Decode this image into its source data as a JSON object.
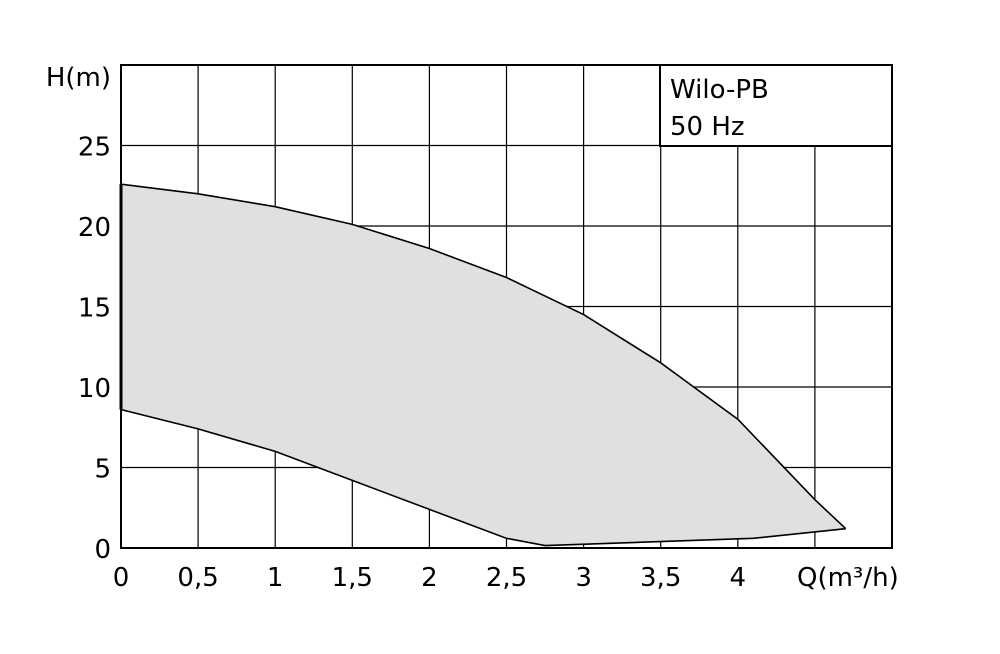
{
  "chart_data": {
    "type": "area",
    "title": "",
    "xlabel": "Q(m³/h)",
    "ylabel": "H(m)",
    "xlim": [
      0,
      5
    ],
    "ylim": [
      0,
      30
    ],
    "x_ticks": [
      "0",
      "0,5",
      "1",
      "1,5",
      "2",
      "2,5",
      "3",
      "3,5",
      "4"
    ],
    "x_tick_values": [
      0,
      0.5,
      1,
      1.5,
      2,
      2.5,
      3,
      3.5,
      4
    ],
    "y_ticks": [
      "0",
      "5",
      "10",
      "15",
      "20",
      "25"
    ],
    "y_tick_values": [
      0,
      5,
      10,
      15,
      20,
      25
    ],
    "grid": true,
    "x_grid_values": [
      0.5,
      1,
      1.5,
      2,
      2.5,
      3,
      3.5,
      4,
      4.5
    ],
    "y_grid_values": [
      5,
      10,
      15,
      20,
      25
    ],
    "legend_box": {
      "lines": [
        "Wilo-PB",
        "50 Hz"
      ],
      "placement": "top-right"
    },
    "region": {
      "fill": "#e0e0e0",
      "stroke": "#000000",
      "upper_boundary": [
        [
          0,
          22.6
        ],
        [
          0.5,
          22.0
        ],
        [
          1,
          21.2
        ],
        [
          1.5,
          20.1
        ],
        [
          2,
          18.6
        ],
        [
          2.5,
          16.8
        ],
        [
          3,
          14.5
        ],
        [
          3.5,
          11.5
        ],
        [
          4,
          8.0
        ],
        [
          4.5,
          3.0
        ],
        [
          4.7,
          1.2
        ]
      ],
      "lower_boundary": [
        [
          0,
          8.6
        ],
        [
          0.5,
          7.4
        ],
        [
          1,
          6.0
        ],
        [
          1.5,
          4.2
        ],
        [
          2,
          2.4
        ],
        [
          2.5,
          0.6
        ],
        [
          2.75,
          0.15
        ],
        [
          4.1,
          0.6
        ],
        [
          4.7,
          1.2
        ]
      ]
    }
  }
}
